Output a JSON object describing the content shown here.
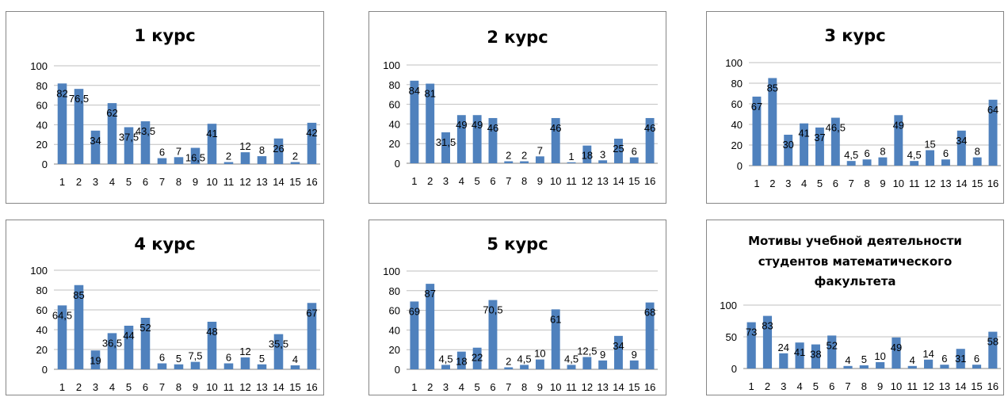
{
  "chart_data": [
    {
      "type": "bar",
      "title": "1 курс",
      "categories": [
        "1",
        "2",
        "3",
        "4",
        "5",
        "6",
        "7",
        "8",
        "9",
        "10",
        "11",
        "12",
        "13",
        "14",
        "15",
        "16"
      ],
      "values": [
        82,
        76.5,
        34,
        62,
        37.5,
        43.5,
        6,
        7,
        16.5,
        41,
        2,
        12,
        8,
        26,
        2,
        42
      ],
      "labels": [
        "82",
        "76,5",
        "34",
        "62",
        "37,5",
        "43,5",
        "6",
        "7",
        "16,5",
        "41",
        "2",
        "12",
        "8",
        "26",
        "2",
        "42"
      ],
      "ylim": [
        0,
        100
      ],
      "yticks": [
        "0",
        "20",
        "40",
        "60",
        "80",
        "100"
      ],
      "grid": true,
      "color": "#4F81BD"
    },
    {
      "type": "bar",
      "title": "2 курс",
      "categories": [
        "1",
        "2",
        "3",
        "4",
        "5",
        "6",
        "7",
        "8",
        "9",
        "10",
        "11",
        "12",
        "13",
        "14",
        "15",
        "16"
      ],
      "values": [
        84,
        81,
        31.5,
        49,
        49,
        46,
        2,
        2,
        7,
        46,
        1,
        18,
        3,
        25,
        6,
        46
      ],
      "labels": [
        "84",
        "81",
        "31,5",
        "49",
        "49",
        "46",
        "2",
        "2",
        "7",
        "46",
        "1",
        "18",
        "3",
        "25",
        "6",
        "46"
      ],
      "ylim": [
        0,
        100
      ],
      "yticks": [
        "0",
        "20",
        "40",
        "60",
        "80",
        "100"
      ],
      "grid": true,
      "color": "#4F81BD"
    },
    {
      "type": "bar",
      "title": "3 курс",
      "categories": [
        "1",
        "2",
        "3",
        "4",
        "5",
        "6",
        "7",
        "8",
        "9",
        "10",
        "11",
        "12",
        "13",
        "14",
        "15",
        "16"
      ],
      "values": [
        67,
        85,
        30,
        41,
        37,
        46.5,
        4.5,
        6,
        8,
        49,
        4.5,
        15,
        6,
        34,
        8,
        64
      ],
      "labels": [
        "67",
        "85",
        "30",
        "41",
        "37",
        "46,5",
        "4,5",
        "6",
        "8",
        "49",
        "4,5",
        "15",
        "6",
        "34",
        "8",
        "64"
      ],
      "ylim": [
        0,
        100
      ],
      "yticks": [
        "0",
        "20",
        "40",
        "60",
        "80",
        "100"
      ],
      "grid": true,
      "color": "#4F81BD"
    },
    {
      "type": "bar",
      "title": "4 курс",
      "categories": [
        "1",
        "2",
        "3",
        "4",
        "5",
        "6",
        "7",
        "8",
        "9",
        "10",
        "11",
        "12",
        "13",
        "14",
        "15",
        "16"
      ],
      "values": [
        64.5,
        85,
        19,
        36.5,
        44,
        52,
        6,
        5,
        7.5,
        48,
        6,
        12,
        5,
        35.5,
        4,
        67
      ],
      "labels": [
        "64,5",
        "85",
        "19",
        "36,5",
        "44",
        "52",
        "6",
        "5",
        "7,5",
        "48",
        "6",
        "12",
        "5",
        "35,5",
        "4",
        "67"
      ],
      "ylim": [
        0,
        100
      ],
      "yticks": [
        "0",
        "20",
        "40",
        "60",
        "80",
        "100"
      ],
      "grid": true,
      "color": "#4F81BD"
    },
    {
      "type": "bar",
      "title": "5 курс",
      "categories": [
        "1",
        "2",
        "3",
        "4",
        "5",
        "6",
        "7",
        "8",
        "9",
        "10",
        "11",
        "12",
        "13",
        "14",
        "15",
        "16"
      ],
      "values": [
        69,
        87,
        4.5,
        18,
        22,
        70.5,
        2,
        4.5,
        10,
        61,
        4.5,
        12.5,
        9,
        34,
        9,
        68
      ],
      "labels": [
        "69",
        "87",
        "4,5",
        "18",
        "22",
        "70,5",
        "2",
        "4,5",
        "10",
        "61",
        "4,5",
        "12,5",
        "9",
        "34",
        "9",
        "68"
      ],
      "ylim": [
        0,
        100
      ],
      "yticks": [
        "0",
        "20",
        "40",
        "60",
        "80",
        "100"
      ],
      "grid": true,
      "color": "#4F81BD"
    },
    {
      "type": "bar",
      "title": "Мотивы учебной деятельности студентов математического факультета",
      "title_lines": [
        "Мотивы учебной деятельности",
        "студентов математического",
        "факультета"
      ],
      "categories": [
        "1",
        "2",
        "3",
        "4",
        "5",
        "6",
        "7",
        "8",
        "9",
        "10",
        "11",
        "12",
        "13",
        "14",
        "15",
        "16"
      ],
      "values": [
        73,
        83,
        24,
        41,
        38,
        52,
        4,
        5,
        10,
        49,
        4,
        14,
        6,
        31,
        6,
        58
      ],
      "labels": [
        "73",
        "83",
        "24",
        "41",
        "38",
        "52",
        "4",
        "5",
        "10",
        "49",
        "4",
        "14",
        "6",
        "31",
        "6",
        "58"
      ],
      "ylim": [
        0,
        100
      ],
      "yticks": [
        "0",
        "50",
        "100"
      ],
      "grid": true,
      "color": "#4F81BD"
    }
  ]
}
